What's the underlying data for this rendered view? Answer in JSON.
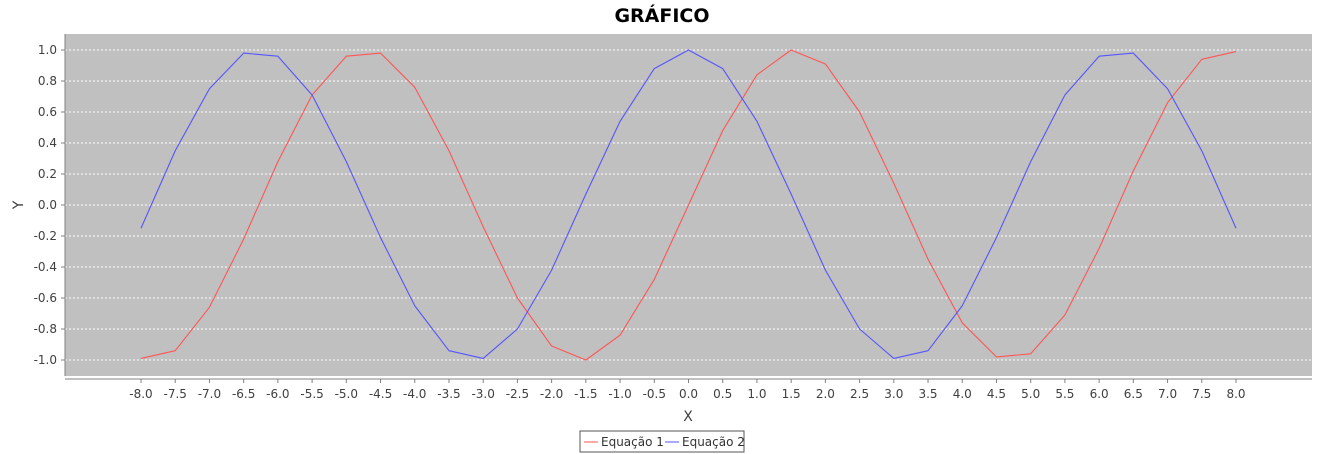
{
  "chart_data": {
    "type": "line",
    "title": "GRÁFICO",
    "xlabel": "X",
    "ylabel": "Y",
    "xlim": [
      -8.0,
      8.0
    ],
    "ylim": [
      -1.0,
      1.0
    ],
    "x_ticks": [
      -8.0,
      -7.5,
      -7.0,
      -6.5,
      -6.0,
      -5.5,
      -5.0,
      -4.5,
      -4.0,
      -3.5,
      -3.0,
      -2.5,
      -2.0,
      -1.5,
      -1.0,
      -0.5,
      0.0,
      0.5,
      1.0,
      1.5,
      2.0,
      2.5,
      3.0,
      3.5,
      4.0,
      4.5,
      5.0,
      5.5,
      6.0,
      6.5,
      7.0,
      7.5,
      8.0
    ],
    "x_tick_labels": [
      "-8.0",
      "-7.5",
      "-7.0",
      "-6.5",
      "-6.0",
      "-5.5",
      "-5.0",
      "-4.5",
      "-4.0",
      "-3.5",
      "-3.0",
      "-2.5",
      "-2.0",
      "-1.5",
      "-1.0",
      "-0.5",
      "0.0",
      "0.5",
      "1.0",
      "1.5",
      "2.0",
      "2.5",
      "3.0",
      "3.5",
      "4.0",
      "4.5",
      "5.0",
      "5.5",
      "6.0",
      "6.5",
      "7.0",
      "7.5",
      "8.0"
    ],
    "y_ticks": [
      1.0,
      0.8,
      0.6,
      0.4,
      0.2,
      0.0,
      -0.2,
      -0.4,
      -0.6,
      -0.8,
      -1.0
    ],
    "y_tick_labels": [
      "1.0",
      "0.8",
      "0.6",
      "0.4",
      "0.2",
      "0.0",
      "-0.2",
      "-0.4",
      "-0.6",
      "-0.8",
      "-1.0"
    ],
    "grid": true,
    "legend_position": "bottom-center",
    "background_color": "#c0c0c0",
    "x": [
      -8.0,
      -7.5,
      -7.0,
      -6.5,
      -6.0,
      -5.5,
      -5.0,
      -4.5,
      -4.0,
      -3.5,
      -3.0,
      -2.5,
      -2.0,
      -1.5,
      -1.0,
      -0.5,
      0.0,
      0.5,
      1.0,
      1.5,
      2.0,
      2.5,
      3.0,
      3.5,
      4.0,
      4.5,
      5.0,
      5.5,
      6.0,
      6.5,
      7.0,
      7.5,
      8.0
    ],
    "series": [
      {
        "name": "Equação 1",
        "color": "#ff5555",
        "values": [
          -0.99,
          -0.94,
          -0.66,
          -0.22,
          0.28,
          0.71,
          0.96,
          0.98,
          0.76,
          0.35,
          -0.14,
          -0.6,
          -0.91,
          -1.0,
          -0.84,
          -0.48,
          0.0,
          0.48,
          0.84,
          1.0,
          0.91,
          0.6,
          0.14,
          -0.35,
          -0.76,
          -0.98,
          -0.96,
          -0.71,
          -0.28,
          0.22,
          0.66,
          0.94,
          0.99
        ]
      },
      {
        "name": "Equação 2",
        "color": "#5555ff",
        "values": [
          -0.15,
          0.35,
          0.75,
          0.98,
          0.96,
          0.71,
          0.28,
          -0.21,
          -0.65,
          -0.94,
          -0.99,
          -0.8,
          -0.42,
          0.07,
          0.54,
          0.88,
          1.0,
          0.88,
          0.54,
          0.07,
          -0.42,
          -0.8,
          -0.99,
          -0.94,
          -0.65,
          -0.21,
          0.28,
          0.71,
          0.96,
          0.98,
          0.75,
          0.35,
          -0.15
        ]
      }
    ]
  }
}
